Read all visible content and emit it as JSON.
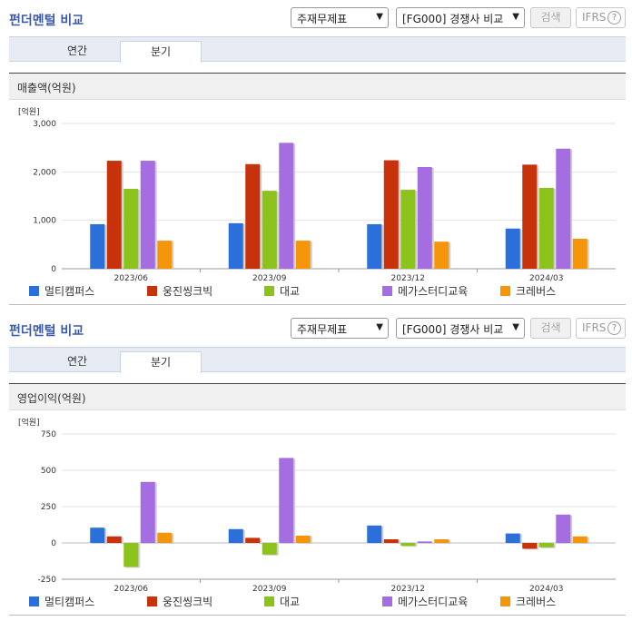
{
  "panels": [
    {
      "title": "펀더멘털 비교",
      "select_statement": "주재무제표",
      "select_compare": "[FG000] 경쟁사 비교",
      "search_label": "검색",
      "ifrs_label": "IFRS",
      "help_glyph": "?",
      "tab_annual": "연간",
      "tab_quarter": "분기",
      "section_label": "매출액(억원)"
    },
    {
      "title": "펀더멘털 비교",
      "select_statement": "주재무제표",
      "select_compare": "[FG000] 경쟁사 비교",
      "search_label": "검색",
      "ifrs_label": "IFRS",
      "help_glyph": "?",
      "tab_annual": "연간",
      "tab_quarter": "분기",
      "section_label": "영업이익(억원)"
    }
  ],
  "legend": [
    "멀티캠퍼스",
    "웅진씽크빅",
    "대교",
    "메가스터디교육",
    "크레버스"
  ],
  "colors": [
    "#2b6fdb",
    "#c8320b",
    "#8cc21c",
    "#a46ee0",
    "#f5960a"
  ],
  "chart_data": [
    {
      "type": "bar",
      "unit": "[억원]",
      "categories": [
        "2023/06",
        "2023/09",
        "2023/12",
        "2024/03"
      ],
      "ylim": [
        0,
        3000
      ],
      "yticks": [
        0,
        1000,
        2000,
        3000
      ],
      "ytick_labels": [
        "0",
        "1,000",
        "2,000",
        "3,000"
      ],
      "series": [
        {
          "name": "멀티캠퍼스",
          "values": [
            920,
            940,
            920,
            830
          ]
        },
        {
          "name": "웅진씽크빅",
          "values": [
            2230,
            2160,
            2240,
            2150
          ]
        },
        {
          "name": "대교",
          "values": [
            1650,
            1610,
            1630,
            1670
          ]
        },
        {
          "name": "메가스터디교육",
          "values": [
            2230,
            2600,
            2100,
            2480
          ]
        },
        {
          "name": "크레버스",
          "values": [
            580,
            580,
            560,
            620
          ]
        }
      ]
    },
    {
      "type": "bar",
      "unit": "[억원]",
      "categories": [
        "2023/06",
        "2023/09",
        "2023/12",
        "2024/03"
      ],
      "ylim": [
        -250,
        750
      ],
      "yticks": [
        -250,
        0,
        250,
        500,
        750
      ],
      "ytick_labels": [
        "-250",
        "0",
        "250",
        "500",
        "750"
      ],
      "series": [
        {
          "name": "멀티캠퍼스",
          "values": [
            105,
            95,
            120,
            65
          ]
        },
        {
          "name": "웅진씽크빅",
          "values": [
            45,
            35,
            25,
            -40
          ]
        },
        {
          "name": "대교",
          "values": [
            -165,
            -80,
            -20,
            -30
          ]
        },
        {
          "name": "메가스터디교육",
          "values": [
            420,
            585,
            10,
            195
          ]
        },
        {
          "name": "크레버스",
          "values": [
            70,
            50,
            25,
            45
          ]
        }
      ]
    }
  ]
}
